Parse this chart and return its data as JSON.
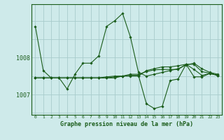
{
  "background_color": "#ceeaea",
  "grid_color": "#a8cccc",
  "line_color": "#1a5c1a",
  "marker_color": "#1a5c1a",
  "title": "Graphe pression niveau de la mer (hPa)",
  "ytick_labels": [
    "1007",
    "1008"
  ],
  "ytick_values": [
    1007.0,
    1008.0
  ],
  "ylim": [
    1006.45,
    1009.45
  ],
  "xlim": [
    -0.5,
    23.5
  ],
  "xtick_labels": [
    "0",
    "1",
    "2",
    "3",
    "4",
    "5",
    "6",
    "7",
    "8",
    "9",
    "10",
    "11",
    "12",
    "13",
    "14",
    "15",
    "16",
    "17",
    "18",
    "19",
    "20",
    "21",
    "22",
    "23"
  ],
  "series": [
    [
      1008.85,
      1007.65,
      1007.45,
      1007.45,
      1007.15,
      1007.55,
      1007.85,
      1007.85,
      1008.05,
      1008.85,
      1009.0,
      1009.2,
      1008.55,
      1007.6,
      1007.5,
      1007.55,
      1007.6,
      1007.65,
      1007.7,
      1007.8,
      1007.85,
      1007.7,
      1007.6,
      1007.55
    ],
    [
      1007.45,
      1007.45,
      1007.45,
      1007.45,
      1007.45,
      1007.45,
      1007.45,
      1007.45,
      1007.45,
      1007.45,
      1007.45,
      1007.5,
      1007.5,
      1007.5,
      1007.65,
      1007.7,
      1007.75,
      1007.75,
      1007.78,
      1007.82,
      1007.68,
      1007.52,
      1007.57,
      1007.52
    ],
    [
      1007.45,
      1007.45,
      1007.45,
      1007.45,
      1007.45,
      1007.45,
      1007.45,
      1007.45,
      1007.45,
      1007.45,
      1007.48,
      1007.5,
      1007.52,
      1007.52,
      1006.75,
      1006.62,
      1006.68,
      1007.38,
      1007.42,
      1007.82,
      1007.48,
      1007.48,
      1007.57,
      1007.52
    ],
    [
      1007.45,
      1007.45,
      1007.45,
      1007.45,
      1007.45,
      1007.45,
      1007.45,
      1007.45,
      1007.45,
      1007.48,
      1007.5,
      1007.5,
      1007.55,
      1007.55,
      1007.62,
      1007.67,
      1007.68,
      1007.68,
      1007.68,
      1007.82,
      1007.82,
      1007.62,
      1007.58,
      1007.52
    ]
  ]
}
